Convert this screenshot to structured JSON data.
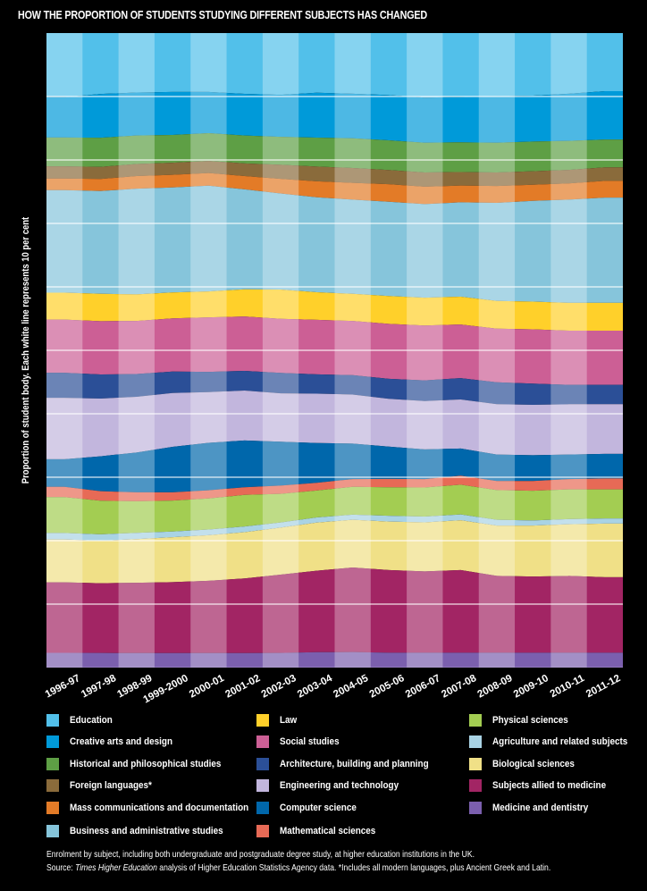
{
  "chart_data": {
    "type": "area",
    "stacked": "percent",
    "title": "HOW THE PROPORTION OF STUDENTS STUDYING DIFFERENT SUBJECTS HAS CHANGED",
    "ylabel": "Proportion of student body. Each white line represents 10 per cent",
    "xlabel": "",
    "ylim": [
      0,
      100
    ],
    "gridlines_every": 10,
    "categories": [
      "1996-97",
      "1997-98",
      "1998-99",
      "1999-2000",
      "2000-01",
      "2001-02",
      "2002-03",
      "2003-04",
      "2004-05",
      "2005-06",
      "2006-07",
      "2007-08",
      "2008-09",
      "2009-10",
      "2010-11",
      "2011-12"
    ],
    "series": [
      {
        "name": "Education",
        "color": "#52c0ea",
        "values": [
          10.0,
          9.6,
          9.4,
          9.3,
          9.3,
          9.6,
          9.7,
          9.3,
          9.4,
          9.6,
          10.0,
          9.9,
          9.8,
          9.7,
          9.4,
          9.0
        ]
      },
      {
        "name": "Creative arts and design",
        "color": "#009ad9",
        "values": [
          6.3,
          6.9,
          6.8,
          6.8,
          6.5,
          6.6,
          6.6,
          7.0,
          6.9,
          7.0,
          7.0,
          7.0,
          7.2,
          7.1,
          7.3,
          7.5
        ]
      },
      {
        "name": "Historical and philosophical studies",
        "color": "#5e9f45",
        "values": [
          4.5,
          4.6,
          4.5,
          4.4,
          4.4,
          4.4,
          4.4,
          4.5,
          4.6,
          4.6,
          4.6,
          4.6,
          4.6,
          4.6,
          4.5,
          4.3
        ]
      },
      {
        "name": "Foreign languages*",
        "color": "#8a6b3b",
        "values": [
          1.9,
          1.9,
          1.9,
          1.9,
          1.9,
          2.0,
          2.2,
          2.3,
          2.3,
          2.2,
          2.2,
          2.1,
          2.1,
          2.1,
          2.1,
          2.1
        ]
      },
      {
        "name": "Mass communications and documentation",
        "color": "#e37b27",
        "values": [
          1.8,
          1.9,
          2.0,
          2.0,
          2.0,
          2.1,
          2.3,
          2.5,
          2.6,
          2.7,
          2.7,
          2.6,
          2.6,
          2.5,
          2.5,
          2.6
        ]
      },
      {
        "name": "Business and administrative studies",
        "color": "#86c5db",
        "values": [
          16.0,
          16.2,
          16.7,
          16.6,
          16.7,
          15.8,
          15.1,
          14.8,
          14.6,
          14.6,
          14.5,
          14.6,
          15.2,
          15.6,
          16.0,
          16.3
        ]
      },
      {
        "name": "Law",
        "color": "#ffd02a",
        "values": [
          4.2,
          4.3,
          4.2,
          4.1,
          4.1,
          4.3,
          4.6,
          4.3,
          4.2,
          4.3,
          4.3,
          4.3,
          4.3,
          4.3,
          4.3,
          4.3
        ]
      },
      {
        "name": "Social studies",
        "color": "#cc5f95",
        "values": [
          8.3,
          8.4,
          8.4,
          8.4,
          8.6,
          8.6,
          8.5,
          8.5,
          8.4,
          8.5,
          8.5,
          8.3,
          8.3,
          8.4,
          8.4,
          8.4
        ]
      },
      {
        "name": "Architecture, building and planning",
        "color": "#2b4f97",
        "values": [
          3.9,
          3.8,
          3.6,
          3.4,
          3.2,
          3.1,
          3.2,
          3.0,
          3.0,
          3.1,
          3.2,
          3.3,
          3.4,
          3.3,
          3.0,
          3.0
        ]
      },
      {
        "name": "Engineering and technology",
        "color": "#c2b6dd",
        "values": [
          9.6,
          9.1,
          8.8,
          8.5,
          8.0,
          7.9,
          7.6,
          7.7,
          7.6,
          7.4,
          7.5,
          7.6,
          7.8,
          7.8,
          7.8,
          7.7
        ]
      },
      {
        "name": "Computer science",
        "color": "#0067ab",
        "values": [
          4.3,
          5.5,
          6.3,
          7.2,
          7.5,
          7.4,
          6.9,
          6.2,
          5.5,
          5.0,
          4.6,
          4.2,
          4.1,
          4.0,
          3.8,
          3.8
        ]
      },
      {
        "name": "Mathematical sciences",
        "color": "#e76a56",
        "values": [
          1.6,
          1.5,
          1.4,
          1.3,
          1.3,
          1.2,
          1.3,
          1.2,
          1.2,
          1.3,
          1.3,
          1.4,
          1.4,
          1.5,
          1.6,
          1.7
        ]
      },
      {
        "name": "Physical sciences",
        "color": "#a3cd52",
        "values": [
          5.6,
          5.3,
          5.0,
          4.9,
          4.9,
          5.0,
          4.5,
          4.2,
          4.3,
          4.4,
          4.5,
          4.6,
          4.6,
          4.6,
          4.6,
          4.5
        ]
      },
      {
        "name": "Agriculture and related subjects",
        "color": "#a9d3e4",
        "values": [
          1.0,
          1.0,
          1.0,
          0.9,
          0.9,
          0.9,
          0.8,
          0.8,
          0.8,
          0.9,
          0.9,
          0.9,
          0.9,
          0.8,
          0.8,
          0.8
        ]
      },
      {
        "name": "Biological sciences",
        "color": "#f0e087",
        "values": [
          6.7,
          6.7,
          6.9,
          7.1,
          7.2,
          7.3,
          7.4,
          7.5,
          7.4,
          7.5,
          7.6,
          7.7,
          7.8,
          7.9,
          8.0,
          8.3
        ]
      },
      {
        "name": "Subjects allied to medicine",
        "color": "#a22564",
        "values": [
          11.0,
          11.0,
          11.1,
          11.2,
          11.4,
          11.8,
          12.3,
          12.7,
          13.1,
          12.8,
          12.6,
          12.8,
          11.9,
          11.8,
          11.9,
          11.7
        ]
      },
      {
        "name": "Medicine and dentistry",
        "color": "#7b5fae",
        "values": [
          2.3,
          2.3,
          2.3,
          2.3,
          2.3,
          2.3,
          2.3,
          2.4,
          2.4,
          2.3,
          2.3,
          2.3,
          2.3,
          2.3,
          2.3,
          2.3
        ]
      }
    ]
  },
  "legend": {
    "columns": [
      [
        0,
        1,
        2,
        3,
        4,
        5
      ],
      [
        6,
        7,
        8,
        9,
        10,
        11
      ],
      [
        12,
        13,
        14,
        15,
        16
      ]
    ]
  },
  "notes": {
    "line1": "Enrolment by subject, including both undergraduate and postgraduate degree study, at higher education institutions in the UK.",
    "line2_prefix": "Source: ",
    "line2_italic": "Times Higher Education",
    "line2_suffix": " analysis of Higher Education Statistics Agency data. *Includes all modern languages, plus Ancient Greek and Latin."
  }
}
